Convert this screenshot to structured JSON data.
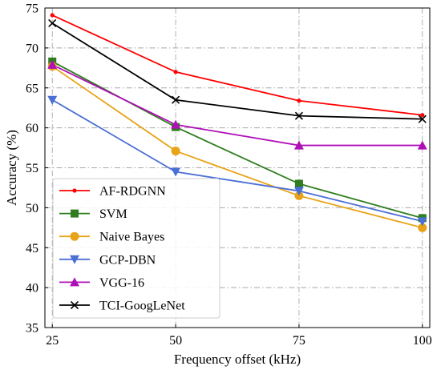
{
  "chart_data": {
    "type": "line",
    "xlabel": "Frequency offset (kHz)",
    "ylabel": "Accuracy (%)",
    "x": [
      25,
      50,
      75,
      100
    ],
    "x_ticks": [
      "25",
      "50",
      "75",
      "100"
    ],
    "xlim": [
      23.5,
      101.5
    ],
    "y_ticks": [
      "35",
      "40",
      "45",
      "50",
      "55",
      "60",
      "65",
      "70",
      "75"
    ],
    "ylim": [
      35,
      75
    ],
    "grid": true,
    "legend_position": "lower-left",
    "series": [
      {
        "name": "AF-RDGNN",
        "values": [
          74.1,
          67.0,
          63.4,
          61.6
        ],
        "color": "#ff0000",
        "marker": "dot"
      },
      {
        "name": "SVM",
        "values": [
          68.3,
          60.1,
          53.0,
          48.7
        ],
        "color": "#2e7d1e",
        "marker": "square"
      },
      {
        "name": "Naive Bayes",
        "values": [
          67.7,
          57.1,
          51.5,
          47.5
        ],
        "color": "#e8a317",
        "marker": "circle"
      },
      {
        "name": "GCP-DBN",
        "values": [
          63.5,
          54.5,
          52.1,
          48.3
        ],
        "color": "#4a6fd6",
        "marker": "triangle-down"
      },
      {
        "name": "VGG-16",
        "values": [
          67.9,
          60.4,
          57.8,
          57.8
        ],
        "color": "#b010b8",
        "marker": "triangle-up"
      },
      {
        "name": "TCI-GoogLeNet",
        "values": [
          73.1,
          63.5,
          61.5,
          61.1
        ],
        "color": "#000000",
        "marker": "x"
      }
    ]
  }
}
